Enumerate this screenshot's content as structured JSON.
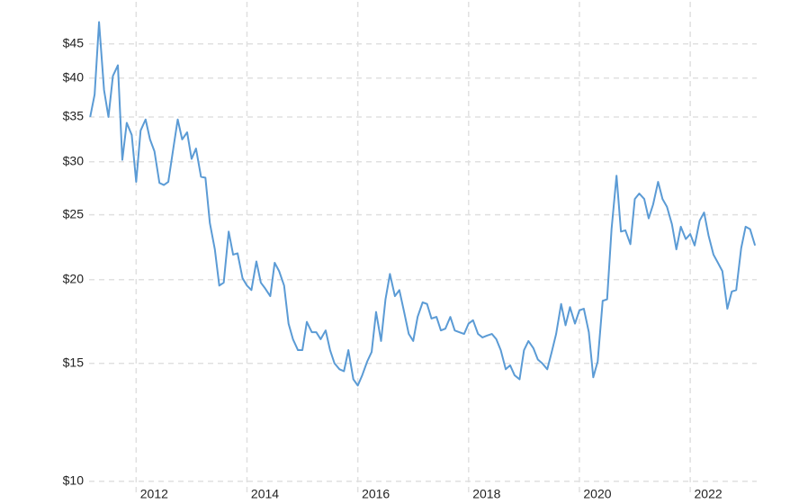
{
  "chart_data": {
    "type": "line",
    "x": [
      2011.17,
      2011.25,
      2011.33,
      2011.42,
      2011.5,
      2011.58,
      2011.67,
      2011.75,
      2011.83,
      2011.92,
      2012,
      2012.08,
      2012.17,
      2012.25,
      2012.33,
      2012.42,
      2012.5,
      2012.58,
      2012.67,
      2012.75,
      2012.83,
      2012.92,
      2013,
      2013.08,
      2013.17,
      2013.25,
      2013.33,
      2013.42,
      2013.5,
      2013.58,
      2013.67,
      2013.75,
      2013.83,
      2013.92,
      2014,
      2014.08,
      2014.17,
      2014.25,
      2014.33,
      2014.42,
      2014.5,
      2014.58,
      2014.67,
      2014.75,
      2014.83,
      2014.92,
      2015,
      2015.08,
      2015.17,
      2015.25,
      2015.33,
      2015.42,
      2015.5,
      2015.58,
      2015.67,
      2015.75,
      2015.83,
      2015.92,
      2016,
      2016.08,
      2016.17,
      2016.25,
      2016.33,
      2016.42,
      2016.5,
      2016.58,
      2016.67,
      2016.75,
      2016.83,
      2016.92,
      2017,
      2017.08,
      2017.17,
      2017.25,
      2017.33,
      2017.42,
      2017.5,
      2017.58,
      2017.67,
      2017.75,
      2017.83,
      2017.92,
      2018,
      2018.08,
      2018.17,
      2018.25,
      2018.33,
      2018.42,
      2018.5,
      2018.58,
      2018.67,
      2018.75,
      2018.83,
      2018.92,
      2019,
      2019.08,
      2019.17,
      2019.25,
      2019.33,
      2019.42,
      2019.5,
      2019.58,
      2019.67,
      2019.75,
      2019.83,
      2019.92,
      2020,
      2020.08,
      2020.17,
      2020.25,
      2020.33,
      2020.42,
      2020.5,
      2020.58,
      2020.67,
      2020.75,
      2020.83,
      2020.92,
      2021,
      2021.08,
      2021.17,
      2021.25,
      2021.33,
      2021.42,
      2021.5,
      2021.58,
      2021.67,
      2021.75,
      2021.83,
      2021.92,
      2022,
      2022.08,
      2022.17,
      2022.25,
      2022.33,
      2022.42,
      2022.5,
      2022.58,
      2022.67,
      2022.75,
      2022.83,
      2022.92,
      2023,
      2023.08,
      2023.17
    ],
    "values": [
      35.0,
      37.8,
      48.5,
      38.4,
      35.0,
      40.3,
      41.8,
      30.2,
      34.3,
      32.9,
      28.0,
      33.4,
      34.7,
      32.4,
      31.1,
      27.9,
      27.7,
      28.0,
      31.4,
      34.7,
      32.4,
      33.2,
      30.3,
      31.4,
      28.5,
      28.4,
      24.3,
      22.2,
      19.6,
      19.8,
      23.6,
      21.8,
      21.9,
      20.1,
      19.6,
      19.3,
      21.3,
      19.8,
      19.4,
      18.9,
      21.2,
      20.6,
      19.6,
      17.2,
      16.3,
      15.7,
      15.7,
      17.3,
      16.7,
      16.7,
      16.3,
      16.8,
      15.7,
      15.0,
      14.7,
      14.6,
      15.7,
      14.2,
      13.9,
      14.4,
      15.1,
      15.6,
      17.9,
      16.2,
      18.7,
      20.4,
      18.9,
      19.3,
      18.0,
      16.6,
      16.2,
      17.6,
      18.5,
      18.4,
      17.5,
      17.6,
      16.8,
      16.9,
      17.6,
      16.8,
      16.7,
      16.6,
      17.2,
      17.4,
      16.6,
      16.4,
      16.5,
      16.6,
      16.3,
      15.7,
      14.7,
      14.9,
      14.4,
      14.2,
      15.7,
      16.2,
      15.8,
      15.2,
      15.0,
      14.7,
      15.6,
      16.6,
      18.4,
      17.1,
      18.2,
      17.2,
      18.0,
      18.1,
      16.7,
      14.3,
      15.1,
      18.6,
      18.7,
      23.8,
      28.6,
      23.6,
      23.7,
      22.6,
      26.4,
      26.9,
      26.4,
      24.7,
      25.9,
      28.0,
      26.4,
      25.7,
      24.2,
      22.2,
      24.0,
      23.0,
      23.4,
      22.5,
      24.5,
      25.2,
      23.3,
      21.8,
      21.2,
      20.6,
      18.1,
      19.2,
      19.3,
      22.3,
      24.0,
      23.8,
      22.5
    ],
    "color": "#5b9bd5",
    "xlim": [
      2011.15,
      2023.2
    ],
    "xticks": [
      2012,
      2014,
      2016,
      2018,
      2020,
      2022
    ],
    "ylim": [
      9.6,
      52
    ],
    "yticks": [
      {
        "value": 10,
        "label": "$10"
      },
      {
        "value": 15,
        "label": "$15"
      },
      {
        "value": 20,
        "label": "$20"
      },
      {
        "value": 25,
        "label": "$25"
      },
      {
        "value": 30,
        "label": "$30"
      },
      {
        "value": 35,
        "label": "$35"
      },
      {
        "value": 40,
        "label": "$40"
      },
      {
        "value": 45,
        "label": "$45"
      }
    ],
    "log_scale": true,
    "grid": true
  }
}
